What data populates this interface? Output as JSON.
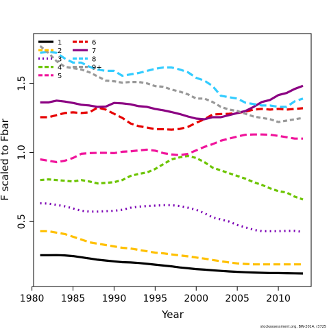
{
  "chart_data": {
    "type": "line",
    "xlabel": "Year",
    "ylabel": "F scaled to Fbar",
    "xlim": [
      1980.2,
      2014
    ],
    "ylim": [
      0.03,
      1.86
    ],
    "xticks": [
      1980,
      1985,
      1990,
      1995,
      2000,
      2005,
      2010
    ],
    "yticks": [
      0.5,
      1.0,
      1.5
    ],
    "ytick_labels": [
      "0.5",
      "1.0",
      "1.5"
    ],
    "grid": false,
    "legend_position": "top-left",
    "footnote": "stockassessment.org, BW-2014, r3725",
    "x": [
      1981,
      1982,
      1983,
      1984,
      1985,
      1986,
      1987,
      1988,
      1989,
      1990,
      1991,
      1992,
      1993,
      1994,
      1995,
      1996,
      1997,
      1998,
      1999,
      2000,
      2001,
      2002,
      2003,
      2004,
      2005,
      2006,
      2007,
      2008,
      2009,
      2010,
      2011,
      2012,
      2013
    ],
    "series": [
      {
        "name": "1",
        "color": "#000000",
        "dash": "solid",
        "values": [
          0.256,
          0.256,
          0.257,
          0.255,
          0.25,
          0.242,
          0.233,
          0.224,
          0.218,
          0.212,
          0.206,
          0.204,
          0.2,
          0.194,
          0.188,
          0.182,
          0.176,
          0.168,
          0.162,
          0.156,
          0.152,
          0.147,
          0.143,
          0.139,
          0.136,
          0.133,
          0.131,
          0.129,
          0.127,
          0.127,
          0.126,
          0.125,
          0.124
        ]
      },
      {
        "name": "2",
        "color": "#FFC000",
        "dash": "long",
        "values": [
          0.43,
          0.43,
          0.42,
          0.41,
          0.39,
          0.37,
          0.35,
          0.34,
          0.33,
          0.32,
          0.31,
          0.305,
          0.295,
          0.285,
          0.275,
          0.27,
          0.262,
          0.255,
          0.248,
          0.24,
          0.232,
          0.222,
          0.213,
          0.204,
          0.197,
          0.193,
          0.19,
          0.19,
          0.19,
          0.19,
          0.19,
          0.19,
          0.19
        ]
      },
      {
        "name": "3",
        "color": "#7B00B4",
        "dash": "dot",
        "values": [
          0.632,
          0.63,
          0.62,
          0.61,
          0.595,
          0.578,
          0.572,
          0.572,
          0.575,
          0.578,
          0.585,
          0.6,
          0.608,
          0.612,
          0.615,
          0.618,
          0.618,
          0.612,
          0.6,
          0.585,
          0.56,
          0.53,
          0.515,
          0.5,
          0.475,
          0.458,
          0.44,
          0.43,
          0.43,
          0.43,
          0.432,
          0.432,
          0.425
        ]
      },
      {
        "name": "4",
        "color": "#6CC400",
        "dash": "medium",
        "values": [
          0.8,
          0.805,
          0.8,
          0.795,
          0.79,
          0.8,
          0.79,
          0.776,
          0.78,
          0.785,
          0.8,
          0.83,
          0.845,
          0.855,
          0.88,
          0.915,
          0.95,
          0.965,
          0.975,
          0.96,
          0.93,
          0.89,
          0.87,
          0.85,
          0.83,
          0.81,
          0.785,
          0.765,
          0.74,
          0.72,
          0.71,
          0.68,
          0.66
        ]
      },
      {
        "name": "5",
        "color": "#F0149B",
        "dash": "long",
        "values": [
          0.95,
          0.94,
          0.93,
          0.94,
          0.96,
          0.99,
          0.995,
          0.997,
          0.997,
          0.995,
          1.005,
          1.008,
          1.015,
          1.02,
          1.013,
          0.995,
          0.985,
          0.98,
          0.99,
          1.015,
          1.04,
          1.06,
          1.085,
          1.1,
          1.115,
          1.128,
          1.13,
          1.13,
          1.128,
          1.12,
          1.11,
          1.1,
          1.1
        ]
      },
      {
        "name": "6",
        "color": "#E60000",
        "dash": "long",
        "values": [
          1.255,
          1.255,
          1.27,
          1.285,
          1.29,
          1.285,
          1.29,
          1.325,
          1.31,
          1.28,
          1.25,
          1.21,
          1.19,
          1.18,
          1.168,
          1.168,
          1.165,
          1.17,
          1.185,
          1.215,
          1.24,
          1.275,
          1.278,
          1.28,
          1.285,
          1.295,
          1.31,
          1.315,
          1.31,
          1.315,
          1.31,
          1.315,
          1.32
        ]
      },
      {
        "name": "7",
        "color": "#8B0082",
        "dash": "solid",
        "values": [
          1.362,
          1.362,
          1.375,
          1.368,
          1.358,
          1.345,
          1.34,
          1.33,
          1.332,
          1.358,
          1.355,
          1.348,
          1.335,
          1.33,
          1.315,
          1.305,
          1.292,
          1.278,
          1.26,
          1.245,
          1.24,
          1.255,
          1.255,
          1.27,
          1.285,
          1.3,
          1.33,
          1.365,
          1.38,
          1.415,
          1.43,
          1.46,
          1.482
        ]
      },
      {
        "name": "8",
        "color": "#33CCFF",
        "dash": "long",
        "values": [
          1.72,
          1.73,
          1.72,
          1.68,
          1.65,
          1.65,
          1.62,
          1.6,
          1.59,
          1.59,
          1.555,
          1.565,
          1.575,
          1.59,
          1.605,
          1.615,
          1.615,
          1.6,
          1.58,
          1.54,
          1.52,
          1.48,
          1.41,
          1.4,
          1.39,
          1.36,
          1.35,
          1.34,
          1.34,
          1.33,
          1.33,
          1.37,
          1.39
        ]
      },
      {
        "name": "9+",
        "color": "#999999",
        "dash": "medium",
        "values": [
          1.77,
          1.72,
          1.66,
          1.62,
          1.61,
          1.6,
          1.58,
          1.55,
          1.52,
          1.515,
          1.505,
          1.51,
          1.51,
          1.5,
          1.48,
          1.475,
          1.455,
          1.44,
          1.42,
          1.39,
          1.39,
          1.365,
          1.33,
          1.31,
          1.3,
          1.28,
          1.26,
          1.25,
          1.24,
          1.22,
          1.23,
          1.24,
          1.25
        ]
      }
    ]
  }
}
